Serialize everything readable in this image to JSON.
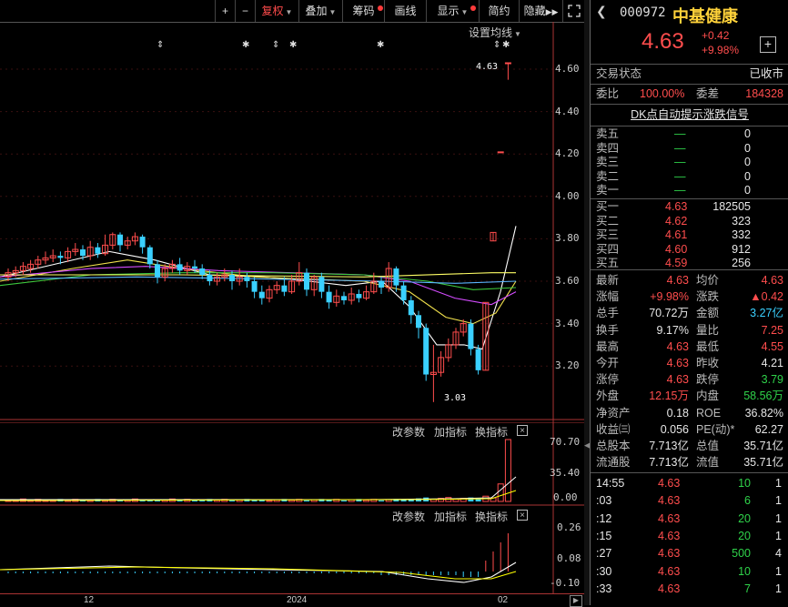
{
  "toolbar": {
    "plus": "+",
    "minus": "−",
    "fuquan": "复权",
    "diejia": "叠加",
    "chouma": "筹码",
    "huaxian": "画线",
    "xianshi": "显示",
    "jianyue": "简约",
    "yincang": "隐藏"
  },
  "chart": {
    "ma_setting": "设置均线",
    "price_axis": [
      "4.60",
      "4.40",
      "4.20",
      "4.00",
      "3.80",
      "3.60",
      "3.40",
      "3.20"
    ],
    "high_label": "4.63",
    "low_label": "3.03",
    "x_axis": [
      "12",
      "2024",
      "02"
    ],
    "star": "✱",
    "updown": "⇕",
    "vol_header": {
      "gaicanshu": "改参数",
      "jiazhibiao": "加指标",
      "huanzhibiao": "换指标"
    },
    "vol_axis": [
      "70.70",
      "35.40",
      "0.00"
    ],
    "macd_header": {
      "gaicanshu": "改参数",
      "jiazhibiao": "加指标",
      "huanzhibiao": "换指标"
    },
    "macd_axis": [
      "0.26",
      "0.08",
      "-0.10"
    ],
    "close_x": "×"
  },
  "chart_data": {
    "type": "candlestick",
    "price_axis_ticks": [
      4.6,
      4.4,
      4.2,
      4.0,
      3.8,
      3.6,
      3.4,
      3.2
    ],
    "last_price": 4.63,
    "low_marker": 3.03,
    "x_ticks": [
      "12",
      "2024",
      "02"
    ]
  },
  "stock": {
    "code": "000972",
    "name": "中基健康",
    "price": "4.63",
    "change": "+0.42",
    "change_pct": "+9.98%",
    "add": "+"
  },
  "status": {
    "label": "交易状态",
    "value": "已收市"
  },
  "weibi": {
    "label": "委比",
    "value": "100.00%",
    "label2": "委差",
    "value2": "184328"
  },
  "signal": "DK点自动提示涨跌信号",
  "sells": [
    {
      "label": "卖五",
      "price": "—",
      "vol": "0"
    },
    {
      "label": "卖四",
      "price": "—",
      "vol": "0"
    },
    {
      "label": "卖三",
      "price": "—",
      "vol": "0"
    },
    {
      "label": "卖二",
      "price": "—",
      "vol": "0"
    },
    {
      "label": "卖一",
      "price": "—",
      "vol": "0"
    }
  ],
  "buys": [
    {
      "label": "买一",
      "price": "4.63",
      "vol": "182505"
    },
    {
      "label": "买二",
      "price": "4.62",
      "vol": "323"
    },
    {
      "label": "买三",
      "price": "4.61",
      "vol": "332"
    },
    {
      "label": "买四",
      "price": "4.60",
      "vol": "912"
    },
    {
      "label": "买五",
      "price": "4.59",
      "vol": "256"
    }
  ],
  "stats": [
    {
      "l1": "最新",
      "v1": "4.63",
      "c1": "red",
      "l2": "均价",
      "v2": "4.63",
      "c2": "red"
    },
    {
      "l1": "涨幅",
      "v1": "+9.98%",
      "c1": "red",
      "l2": "涨跌",
      "v2": "▲0.42",
      "c2": "red"
    },
    {
      "l1": "总手",
      "v1": "70.72万",
      "c1": "white",
      "l2": "金额",
      "v2": "3.27亿",
      "c2": "cyan"
    },
    {
      "l1": "换手",
      "v1": "9.17%",
      "c1": "white",
      "l2": "量比",
      "v2": "7.25",
      "c2": "red"
    },
    {
      "l1": "最高",
      "v1": "4.63",
      "c1": "red",
      "l2": "最低",
      "v2": "4.55",
      "c2": "red"
    },
    {
      "l1": "今开",
      "v1": "4.63",
      "c1": "red",
      "l2": "昨收",
      "v2": "4.21",
      "c2": "white"
    },
    {
      "l1": "涨停",
      "v1": "4.63",
      "c1": "red",
      "l2": "跌停",
      "v2": "3.79",
      "c2": "green"
    },
    {
      "l1": "外盘",
      "v1": "12.15万",
      "c1": "red",
      "l2": "内盘",
      "v2": "58.56万",
      "c2": "green"
    },
    {
      "l1": "净资产",
      "v1": "0.18",
      "c1": "white",
      "l2": "ROE",
      "v2": "36.82%",
      "c2": "white"
    },
    {
      "l1": "收益㈢",
      "v1": "0.056",
      "c1": "white",
      "l2": "PE(动)*",
      "v2": "62.27",
      "c2": "white"
    },
    {
      "l1": "总股本",
      "v1": "7.713亿",
      "c1": "white",
      "l2": "总值",
      "v2": "35.71亿",
      "c2": "white"
    },
    {
      "l1": "流通股",
      "v1": "7.713亿",
      "c1": "white",
      "l2": "流值",
      "v2": "35.71亿",
      "c2": "white"
    }
  ],
  "ticks": [
    {
      "time": "14:55",
      "price": "4.63",
      "vol": "10",
      "num": "1"
    },
    {
      "time": ":03",
      "price": "4.63",
      "vol": "6",
      "num": "1"
    },
    {
      "time": ":12",
      "price": "4.63",
      "vol": "20",
      "num": "1"
    },
    {
      "time": ":15",
      "price": "4.63",
      "vol": "20",
      "num": "1"
    },
    {
      "time": ":27",
      "price": "4.63",
      "vol": "500",
      "num": "4"
    },
    {
      "time": ":30",
      "price": "4.63",
      "vol": "10",
      "num": "1"
    },
    {
      "time": ":33",
      "price": "4.63",
      "vol": "7",
      "num": "1"
    }
  ],
  "colors": {
    "up": "#ff4d4d",
    "down": "#3ad0ff",
    "ma5": "#ffffff",
    "ma10": "#f2e24d",
    "ma20": "#d44cff",
    "ma30": "#3ec93e",
    "ma60": "#5ab4ff"
  }
}
